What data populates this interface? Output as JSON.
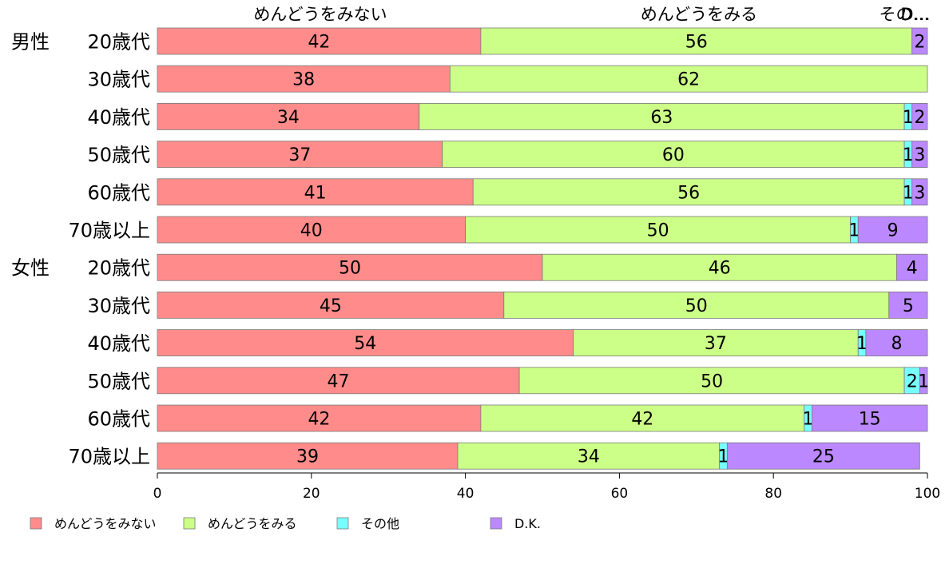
{
  "chart_data": {
    "type": "bar",
    "orientation": "horizontal",
    "stacked": true,
    "xlim": [
      0,
      100
    ],
    "xticks": [
      "0",
      "20",
      "40",
      "60",
      "80",
      "100"
    ],
    "top_labels": [
      "めんどうをみない",
      "めんどうをみる",
      "その…",
      "D…"
    ],
    "groups": [
      {
        "label": "男性",
        "first_category_index": 0
      },
      {
        "label": "女性",
        "first_category_index": 6
      }
    ],
    "categories": [
      "20歳代",
      "30歳代",
      "40歳代",
      "50歳代",
      "60歳代",
      "70歳以上",
      "20歳代",
      "30歳代",
      "40歳代",
      "50歳代",
      "60歳代",
      "70歳以上"
    ],
    "series": [
      {
        "name": "めんどうをみない",
        "color": "#ff8c8a",
        "values": [
          42,
          38,
          34,
          37,
          41,
          40,
          50,
          45,
          54,
          47,
          42,
          39
        ]
      },
      {
        "name": "めんどうをみる",
        "color": "#ccff88",
        "values": [
          56,
          62,
          63,
          60,
          56,
          50,
          46,
          50,
          37,
          50,
          42,
          34
        ]
      },
      {
        "name": "その他",
        "color": "#77ffff",
        "values": [
          0,
          0,
          1,
          1,
          1,
          1,
          0,
          0,
          1,
          2,
          1,
          1
        ]
      },
      {
        "name": "D.K.",
        "color": "#bb88ff",
        "values": [
          2,
          0,
          2,
          3,
          3,
          9,
          4,
          5,
          8,
          1,
          15,
          25
        ]
      }
    ],
    "legend": {
      "position": "bottom-left",
      "labels": [
        "めんどうをみない",
        "めんどうをみる",
        "その他",
        "D.K."
      ]
    }
  }
}
